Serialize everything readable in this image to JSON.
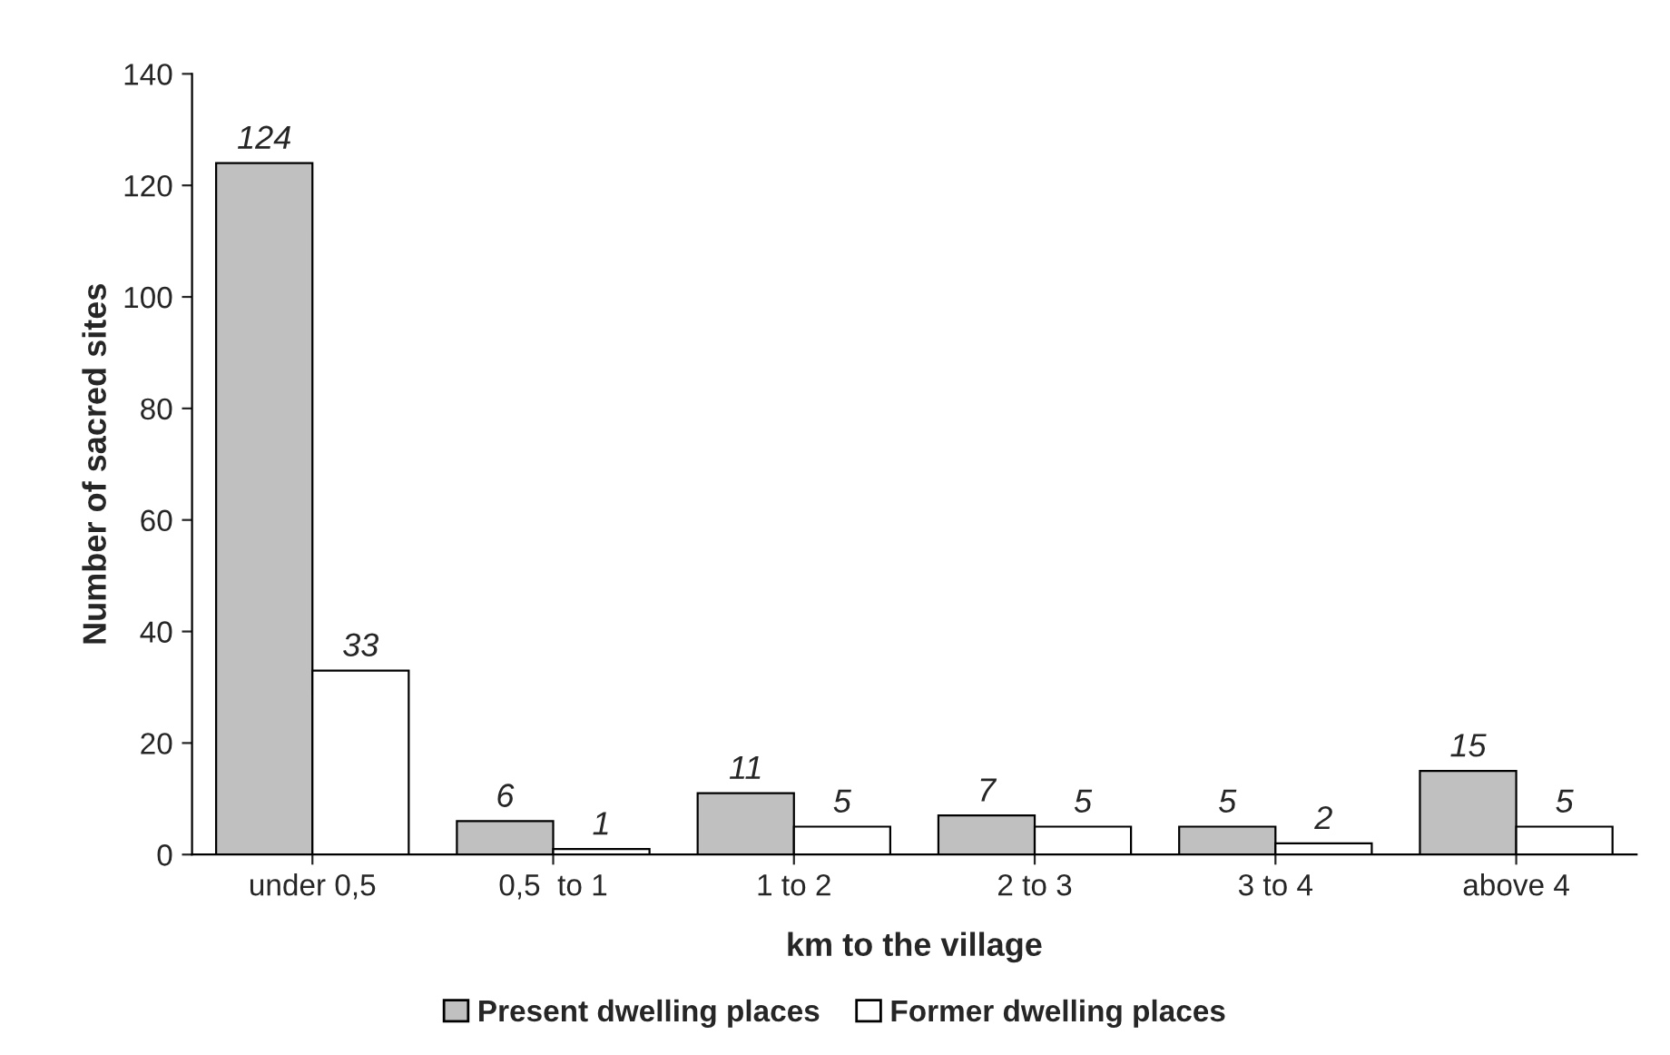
{
  "chart_data": {
    "type": "bar",
    "xlabel": "km to the village",
    "ylabel": "Number of sacred sites",
    "categories": [
      "under 0,5",
      "0,5  to 1",
      "1 to 2",
      "2 to 3",
      "3 to 4",
      "above 4"
    ],
    "series": [
      {
        "name": "Present dwelling places",
        "color": "#c0c0c0",
        "values": [
          124,
          6,
          11,
          7,
          5,
          15
        ]
      },
      {
        "name": "Former dwelling places",
        "color": "#ffffff",
        "values": [
          33,
          1,
          5,
          5,
          2,
          5
        ]
      }
    ],
    "ylim": [
      0,
      140
    ],
    "yticks": [
      0,
      20,
      40,
      60,
      80,
      100,
      120,
      140
    ],
    "grid": false,
    "legend": "bottom",
    "data_labels": true
  }
}
